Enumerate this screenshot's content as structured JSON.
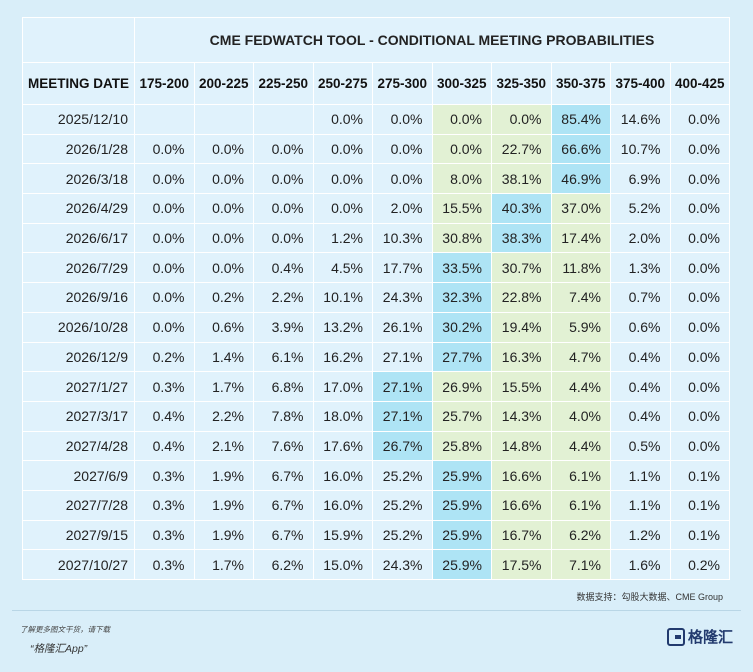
{
  "title": "CME FEDWATCH TOOL - CONDITIONAL MEETING PROBABILITIES",
  "headers": [
    "MEETING DATE",
    "175-200",
    "200-225",
    "225-250",
    "250-275",
    "275-300",
    "300-325",
    "325-350",
    "350-375",
    "375-400",
    "400-425"
  ],
  "rows": [
    {
      "date": "2025/12/10",
      "values": [
        "",
        "",
        "",
        "0.0%",
        "0.0%",
        "0.0%",
        "0.0%",
        "85.4%",
        "14.6%",
        "0.0%"
      ]
    },
    {
      "date": "2026/1/28",
      "values": [
        "0.0%",
        "0.0%",
        "0.0%",
        "0.0%",
        "0.0%",
        "0.0%",
        "22.7%",
        "66.6%",
        "10.7%",
        "0.0%"
      ]
    },
    {
      "date": "2026/3/18",
      "values": [
        "0.0%",
        "0.0%",
        "0.0%",
        "0.0%",
        "0.0%",
        "8.0%",
        "38.1%",
        "46.9%",
        "6.9%",
        "0.0%"
      ]
    },
    {
      "date": "2026/4/29",
      "values": [
        "0.0%",
        "0.0%",
        "0.0%",
        "0.0%",
        "2.0%",
        "15.5%",
        "40.3%",
        "37.0%",
        "5.2%",
        "0.0%"
      ]
    },
    {
      "date": "2026/6/17",
      "values": [
        "0.0%",
        "0.0%",
        "0.0%",
        "1.2%",
        "10.3%",
        "30.8%",
        "38.3%",
        "17.4%",
        "2.0%",
        "0.0%"
      ]
    },
    {
      "date": "2026/7/29",
      "values": [
        "0.0%",
        "0.0%",
        "0.4%",
        "4.5%",
        "17.7%",
        "33.5%",
        "30.7%",
        "11.8%",
        "1.3%",
        "0.0%"
      ]
    },
    {
      "date": "2026/9/16",
      "values": [
        "0.0%",
        "0.2%",
        "2.2%",
        "10.1%",
        "24.3%",
        "32.3%",
        "22.8%",
        "7.4%",
        "0.7%",
        "0.0%"
      ]
    },
    {
      "date": "2026/10/28",
      "values": [
        "0.0%",
        "0.6%",
        "3.9%",
        "13.2%",
        "26.1%",
        "30.2%",
        "19.4%",
        "5.9%",
        "0.6%",
        "0.0%"
      ]
    },
    {
      "date": "2026/12/9",
      "values": [
        "0.2%",
        "1.4%",
        "6.1%",
        "16.2%",
        "27.1%",
        "27.7%",
        "16.3%",
        "4.7%",
        "0.4%",
        "0.0%"
      ]
    },
    {
      "date": "2027/1/27",
      "values": [
        "0.3%",
        "1.7%",
        "6.8%",
        "17.0%",
        "27.1%",
        "26.9%",
        "15.5%",
        "4.4%",
        "0.4%",
        "0.0%"
      ]
    },
    {
      "date": "2027/3/17",
      "values": [
        "0.4%",
        "2.2%",
        "7.8%",
        "18.0%",
        "27.1%",
        "25.7%",
        "14.3%",
        "4.0%",
        "0.4%",
        "0.0%"
      ]
    },
    {
      "date": "2027/4/28",
      "values": [
        "0.4%",
        "2.1%",
        "7.6%",
        "17.6%",
        "26.7%",
        "25.8%",
        "14.8%",
        "4.4%",
        "0.5%",
        "0.0%"
      ]
    },
    {
      "date": "2027/6/9",
      "values": [
        "0.3%",
        "1.9%",
        "6.7%",
        "16.0%",
        "25.2%",
        "25.9%",
        "16.6%",
        "6.1%",
        "1.1%",
        "0.1%"
      ]
    },
    {
      "date": "2027/7/28",
      "values": [
        "0.3%",
        "1.9%",
        "6.7%",
        "16.0%",
        "25.2%",
        "25.9%",
        "16.6%",
        "6.1%",
        "1.1%",
        "0.1%"
      ]
    },
    {
      "date": "2027/9/15",
      "values": [
        "0.3%",
        "1.9%",
        "6.7%",
        "15.9%",
        "25.2%",
        "25.9%",
        "16.7%",
        "6.2%",
        "1.2%",
        "0.1%"
      ]
    },
    {
      "date": "2027/10/27",
      "values": [
        "0.3%",
        "1.7%",
        "6.2%",
        "15.0%",
        "24.3%",
        "25.9%",
        "17.5%",
        "7.1%",
        "1.6%",
        "0.2%"
      ]
    }
  ],
  "green_columns": [
    6,
    7,
    8
  ],
  "colors": {
    "background": "#d9eef9",
    "cell": "#e0f2fc",
    "max_highlight": "#aee4f5",
    "range_highlight": "#e2f1d4"
  },
  "source": "数据支持：勾股大数据、CME Group",
  "promo_line1": "了解更多图文干货，请下载",
  "promo_line2": "“格隆汇App”",
  "logo_text": "格隆汇",
  "chart_data": {
    "type": "table",
    "title": "CME FEDWATCH TOOL - CONDITIONAL MEETING PROBABILITIES",
    "columns": [
      "MEETING DATE",
      "175-200",
      "200-225",
      "225-250",
      "250-275",
      "275-300",
      "300-325",
      "325-350",
      "350-375",
      "375-400",
      "400-425"
    ],
    "rows": [
      [
        "2025/12/10",
        null,
        null,
        null,
        0.0,
        0.0,
        0.0,
        0.0,
        85.4,
        14.6,
        0.0
      ],
      [
        "2026/1/28",
        0.0,
        0.0,
        0.0,
        0.0,
        0.0,
        0.0,
        22.7,
        66.6,
        10.7,
        0.0
      ],
      [
        "2026/3/18",
        0.0,
        0.0,
        0.0,
        0.0,
        0.0,
        8.0,
        38.1,
        46.9,
        6.9,
        0.0
      ],
      [
        "2026/4/29",
        0.0,
        0.0,
        0.0,
        0.0,
        2.0,
        15.5,
        40.3,
        37.0,
        5.2,
        0.0
      ],
      [
        "2026/6/17",
        0.0,
        0.0,
        0.0,
        1.2,
        10.3,
        30.8,
        38.3,
        17.4,
        2.0,
        0.0
      ],
      [
        "2026/7/29",
        0.0,
        0.0,
        0.4,
        4.5,
        17.7,
        33.5,
        30.7,
        11.8,
        1.3,
        0.0
      ],
      [
        "2026/9/16",
        0.0,
        0.2,
        2.2,
        10.1,
        24.3,
        32.3,
        22.8,
        7.4,
        0.7,
        0.0
      ],
      [
        "2026/10/28",
        0.0,
        0.6,
        3.9,
        13.2,
        26.1,
        30.2,
        19.4,
        5.9,
        0.6,
        0.0
      ],
      [
        "2026/12/9",
        0.2,
        1.4,
        6.1,
        16.2,
        27.1,
        27.7,
        16.3,
        4.7,
        0.4,
        0.0
      ],
      [
        "2027/1/27",
        0.3,
        1.7,
        6.8,
        17.0,
        27.1,
        26.9,
        15.5,
        4.4,
        0.4,
        0.0
      ],
      [
        "2027/3/17",
        0.4,
        2.2,
        7.8,
        18.0,
        27.1,
        25.7,
        14.3,
        4.0,
        0.4,
        0.0
      ],
      [
        "2027/4/28",
        0.4,
        2.1,
        7.6,
        17.6,
        26.7,
        25.8,
        14.8,
        4.4,
        0.5,
        0.0
      ],
      [
        "2027/6/9",
        0.3,
        1.9,
        6.7,
        16.0,
        25.2,
        25.9,
        16.6,
        6.1,
        1.1,
        0.1
      ],
      [
        "2027/7/28",
        0.3,
        1.9,
        6.7,
        16.0,
        25.2,
        25.9,
        16.6,
        6.1,
        1.1,
        0.1
      ],
      [
        "2027/9/15",
        0.3,
        1.9,
        6.7,
        15.9,
        25.2,
        25.9,
        16.7,
        6.2,
        1.2,
        0.1
      ],
      [
        "2027/10/27",
        0.3,
        1.7,
        6.2,
        15.0,
        24.3,
        25.9,
        17.5,
        7.1,
        1.6,
        0.2
      ]
    ]
  }
}
